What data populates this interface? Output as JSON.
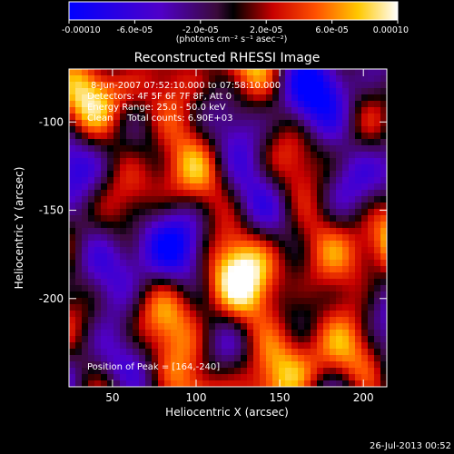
{
  "chart_data": {
    "type": "heatmap",
    "title": "Reconstructed RHESSI Image",
    "xlabel": "Heliocentric X (arcsec)",
    "ylabel": "Heliocentric Y (arcsec)",
    "xlim": [
      24,
      214
    ],
    "ylim": [
      -250,
      -70
    ],
    "xticks": [
      50,
      100,
      150,
      200
    ],
    "yticks": [
      -100,
      -150,
      -200
    ],
    "colorbar": {
      "range": [
        -0.0001,
        0.0001
      ],
      "tick_labels": [
        "-0.00010",
        "-6.0e-05",
        "-2.0e-05",
        "2.0e-05",
        "6.0e-05",
        "0.00010"
      ],
      "tick_values": [
        -0.0001,
        -6e-05,
        -2e-05,
        2e-05,
        6e-05,
        0.0001
      ],
      "units": "(photons cm⁻² s⁻¹ asec⁻²)"
    },
    "annotations": [
      "8-Jun-2007 07:52:10.000 to 07:58:10.000",
      "Detectors: 4F 5F 6F 7F 8F, Att 0",
      "Energy Range: 25.0 - 50.0 keV",
      "Clean     Total counts: 6.90E+03"
    ],
    "peak_label": "Position of Peak = [164,-240]",
    "timestamp": "26-Jul-2013 00:52"
  }
}
